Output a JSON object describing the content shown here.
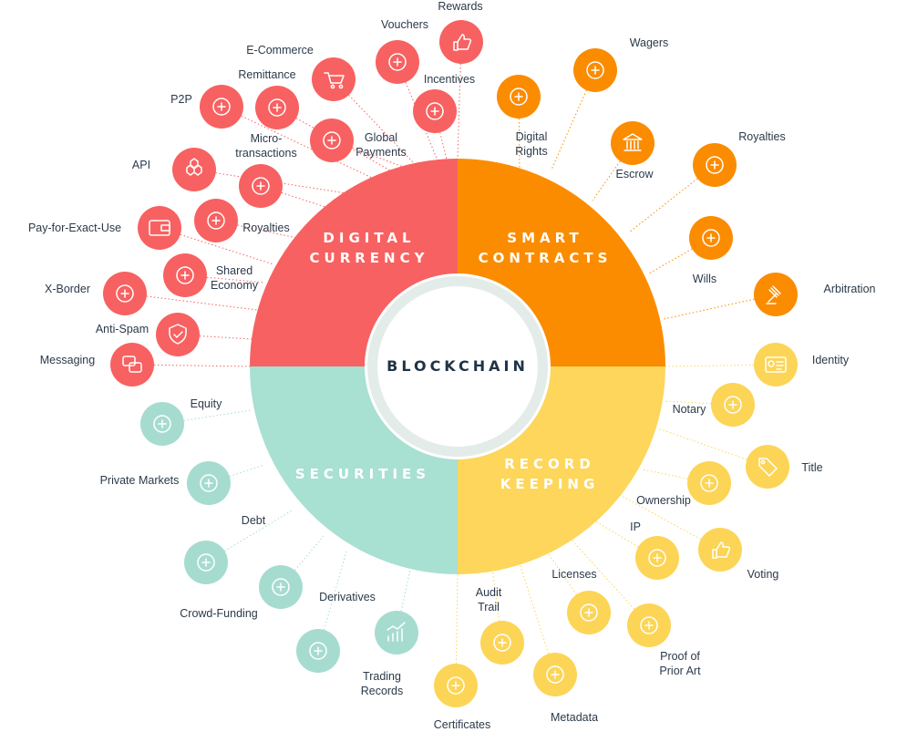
{
  "center": {
    "title": "BLOCKCHAIN"
  },
  "colors": {
    "digital_currency": "#f86161",
    "smart_contracts": "#fb8c00",
    "record_keeping": "#fdd65b",
    "securities": "#a8e0d1",
    "record_keeping_icon": "#fcd557",
    "securities_icon": "#a6dccf",
    "text": "#2b3a4a",
    "center_ring": "#e3ece9"
  },
  "segments": [
    {
      "key": "digital_currency",
      "line1": "DIGITAL",
      "line2": "CURRENCY"
    },
    {
      "key": "smart_contracts",
      "line1": "SMART",
      "line2": "CONTRACTS"
    },
    {
      "key": "record_keeping",
      "line1": "RECORD",
      "line2": "KEEPING"
    },
    {
      "key": "securities",
      "line1": "SECURITIES",
      "line2": ""
    }
  ],
  "items": [
    {
      "label": "Rewards",
      "group": "digital_currency",
      "icon": "thumbs-up-icon"
    },
    {
      "label": "Vouchers",
      "group": "digital_currency",
      "icon": "voucher-icon"
    },
    {
      "label": "E-Commerce",
      "group": "digital_currency",
      "icon": "shopping-cart-icon"
    },
    {
      "label": "Incentives",
      "group": "digital_currency",
      "icon": "medal-icon"
    },
    {
      "label": "Remittance",
      "group": "digital_currency",
      "icon": "delivery-truck-icon"
    },
    {
      "label": "P2P",
      "group": "digital_currency",
      "icon": "peer-to-peer-icon"
    },
    {
      "label": "Global Payments",
      "group": "digital_currency",
      "icon": "globe-dollar-icon"
    },
    {
      "label": "Micro-transactions",
      "group": "digital_currency",
      "icon": "exchange-arrows-icon"
    },
    {
      "label": "API",
      "group": "digital_currency",
      "icon": "cubes-icon"
    },
    {
      "label": "Royalties",
      "group": "digital_currency",
      "icon": "network-dollar-icon"
    },
    {
      "label": "Pay-for-Exact-Use",
      "group": "digital_currency",
      "icon": "wallet-icon"
    },
    {
      "label": "Shared Economy",
      "group": "digital_currency",
      "icon": "cloud-server-icon"
    },
    {
      "label": "X-Border",
      "group": "digital_currency",
      "icon": "dotted-arrows-icon"
    },
    {
      "label": "Anti-Spam",
      "group": "digital_currency",
      "icon": "shield-check-icon"
    },
    {
      "label": "Messaging",
      "group": "digital_currency",
      "icon": "chat-bubbles-icon"
    },
    {
      "label": "Wagers",
      "group": "smart_contracts",
      "icon": "hand-coin-icon"
    },
    {
      "label": "Digital Rights",
      "group": "smart_contracts",
      "icon": "cloud-lock-icon"
    },
    {
      "label": "Escrow",
      "group": "smart_contracts",
      "icon": "bank-icon"
    },
    {
      "label": "Royalties",
      "group": "smart_contracts",
      "icon": "dollar-cycle-icon"
    },
    {
      "label": "Wills",
      "group": "smart_contracts",
      "icon": "document-quill-icon"
    },
    {
      "label": "Arbitration",
      "group": "smart_contracts",
      "icon": "gavel-icon"
    },
    {
      "label": "Identity",
      "group": "record_keeping",
      "icon": "id-card-icon"
    },
    {
      "label": "Notary",
      "group": "record_keeping",
      "icon": "scales-icon"
    },
    {
      "label": "Title",
      "group": "record_keeping",
      "icon": "tag-icon"
    },
    {
      "label": "Ownership",
      "group": "record_keeping",
      "icon": "money-bag-icon"
    },
    {
      "label": "IP",
      "group": "record_keeping",
      "icon": "lightbulb-copyright-icon"
    },
    {
      "label": "Voting",
      "group": "record_keeping",
      "icon": "thumbs-up-down-icon"
    },
    {
      "label": "Licenses",
      "group": "record_keeping",
      "icon": "stacked-documents-icon"
    },
    {
      "label": "Proof of Prior Art",
      "group": "record_keeping",
      "icon": "scroll-icon"
    },
    {
      "label": "Audit Trail",
      "group": "record_keeping",
      "icon": "magnifier-eye-icon"
    },
    {
      "label": "Metadata",
      "group": "record_keeping",
      "icon": "database-gear-icon"
    },
    {
      "label": "Certificates",
      "group": "record_keeping",
      "icon": "certificate-icon"
    },
    {
      "label": "Equity",
      "group": "securities",
      "icon": "balance-dollar-icon"
    },
    {
      "label": "Private Markets",
      "group": "securities",
      "icon": "people-dollar-icon"
    },
    {
      "label": "Debt",
      "group": "securities",
      "icon": "dollar-down-icon"
    },
    {
      "label": "Crowd-Funding",
      "group": "securities",
      "icon": "dollar-down-icon"
    },
    {
      "label": "Derivatives",
      "group": "securities",
      "icon": "node-network-icon"
    },
    {
      "label": "Trading Records",
      "group": "securities",
      "icon": "bar-chart-trend-icon"
    },
    {
      "label": "Crowd-Funding",
      "group": "securities",
      "icon": "branch-arrows-icon"
    }
  ]
}
